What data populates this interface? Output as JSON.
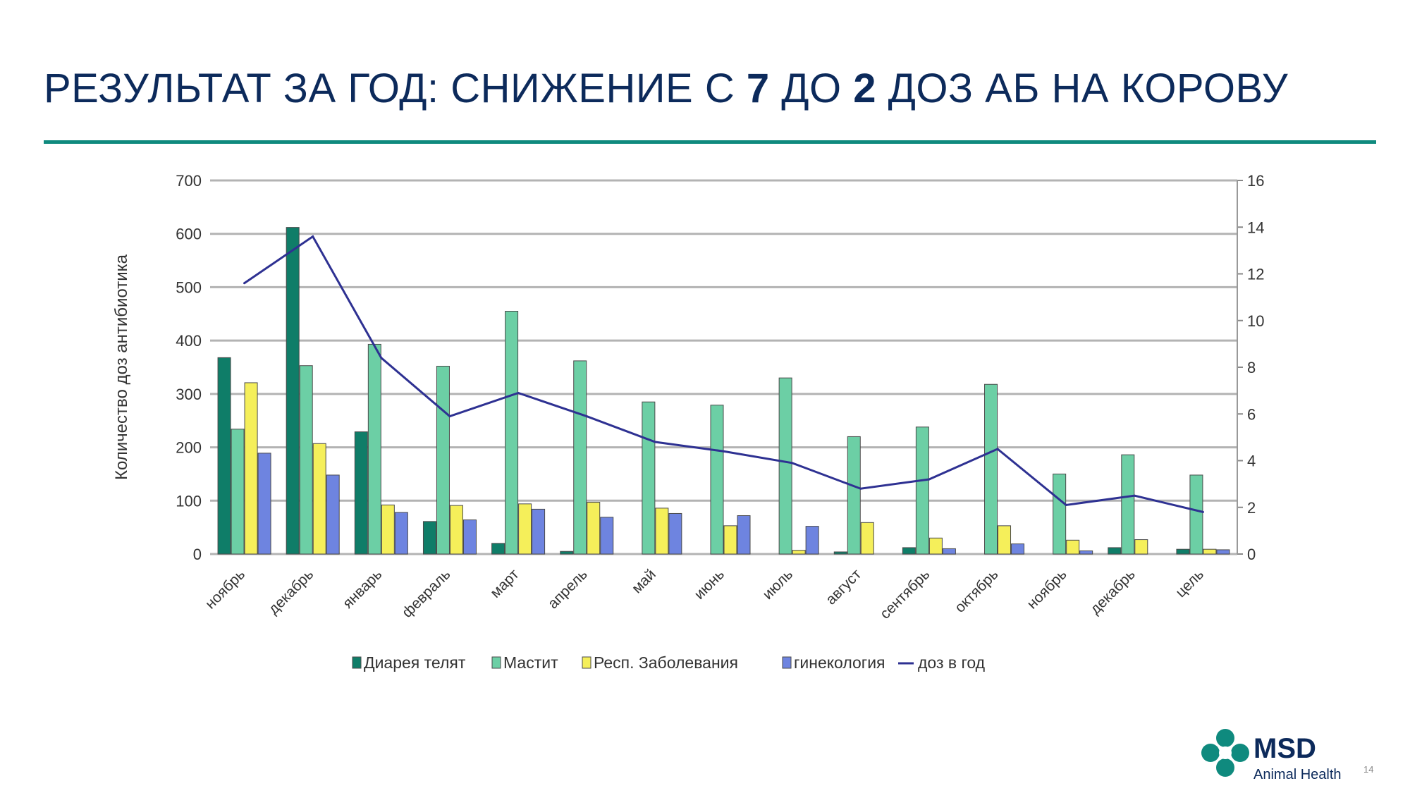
{
  "slide": {
    "title_part1": "РЕЗУЛЬТАТ ЗА ГОД: СНИЖЕНИЕ С ",
    "title_bold1": "7",
    "title_part2": " ДО ",
    "title_bold2": "2",
    "title_part3": " ДОЗ АБ НА КОРОВУ",
    "page_number": "14",
    "logo_text": "MSD",
    "logo_subtext": "Animal Health"
  },
  "colors": {
    "title": "#0c2a5b",
    "rule": "#0f8a7e",
    "logo": "#0f8a7e"
  },
  "chart_data": {
    "type": "bar",
    "title": "",
    "xlabel": "",
    "ylabel": "Количество  доз антибиотика",
    "ylim": [
      0,
      700
    ],
    "y_ticks": [
      0,
      100,
      200,
      300,
      400,
      500,
      600,
      700
    ],
    "y2lim": [
      0,
      16
    ],
    "y2_ticks": [
      0,
      2,
      4,
      6,
      8,
      10,
      12,
      14,
      16
    ],
    "grid": true,
    "legend_position": "bottom",
    "categories": [
      "ноябрь",
      "декабрь",
      "январь",
      "февраль",
      "март",
      "апрель",
      "май",
      "июнь",
      "июль",
      "август",
      "сентябрь",
      "октябрь",
      "ноябрь",
      "декабрь",
      "цель"
    ],
    "series": [
      {
        "name": "Диарея телят",
        "type": "bar",
        "color": "#0f7d68",
        "values": [
          368,
          612,
          229,
          61,
          20,
          5,
          0,
          0,
          0,
          4,
          12,
          0,
          0,
          12,
          9
        ]
      },
      {
        "name": "Мастит",
        "type": "bar",
        "color": "#6ccfa5",
        "values": [
          234,
          353,
          393,
          352,
          455,
          362,
          285,
          279,
          330,
          220,
          238,
          318,
          150,
          186,
          148
        ]
      },
      {
        "name": "Респ. Заболевания",
        "type": "bar",
        "color": "#f5ef5a",
        "values": [
          321,
          207,
          92,
          91,
          94,
          97,
          86,
          53,
          7,
          59,
          30,
          53,
          26,
          27,
          9
        ]
      },
      {
        "name": "гинекология",
        "type": "bar",
        "color": "#6e84e0",
        "values": [
          189,
          148,
          78,
          64,
          84,
          69,
          76,
          72,
          52,
          0,
          10,
          19,
          6,
          0,
          8
        ]
      },
      {
        "name": "доз в год",
        "type": "line",
        "axis": "right",
        "color": "#2e3192",
        "values": [
          11.6,
          13.6,
          8.4,
          5.9,
          6.9,
          5.9,
          4.8,
          4.4,
          3.9,
          2.8,
          3.2,
          4.5,
          2.1,
          2.5,
          1.8
        ]
      }
    ]
  }
}
